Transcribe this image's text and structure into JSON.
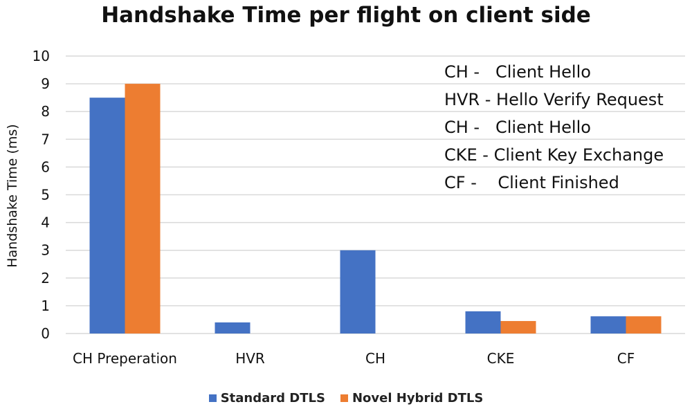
{
  "chart_data": {
    "type": "bar",
    "title": "Handshake Time per flight on client side",
    "xlabel": "",
    "ylabel": "Handshake Time (ms)",
    "ylim": [
      0,
      10
    ],
    "yticks": [
      0,
      1,
      2,
      3,
      4,
      5,
      6,
      7,
      8,
      9,
      10
    ],
    "grid": true,
    "legend_position": "bottom",
    "categories": [
      "CH Preperation",
      "HVR",
      "CH",
      "CKE",
      "CF"
    ],
    "series": [
      {
        "name": "Standard DTLS",
        "color": "#4472C4",
        "values": [
          8.5,
          0.4,
          3.0,
          0.8,
          0.62
        ]
      },
      {
        "name": "Novel Hybrid DTLS",
        "color": "#ED7D31",
        "values": [
          9.0,
          0,
          0,
          0.45,
          0.62
        ]
      }
    ],
    "annotations": [
      "CH -   Client Hello",
      "HVR - Hello Verify Request",
      "CH -   Client Hello",
      "CKE - Client Key Exchange",
      "CF -    Client Finished"
    ]
  }
}
